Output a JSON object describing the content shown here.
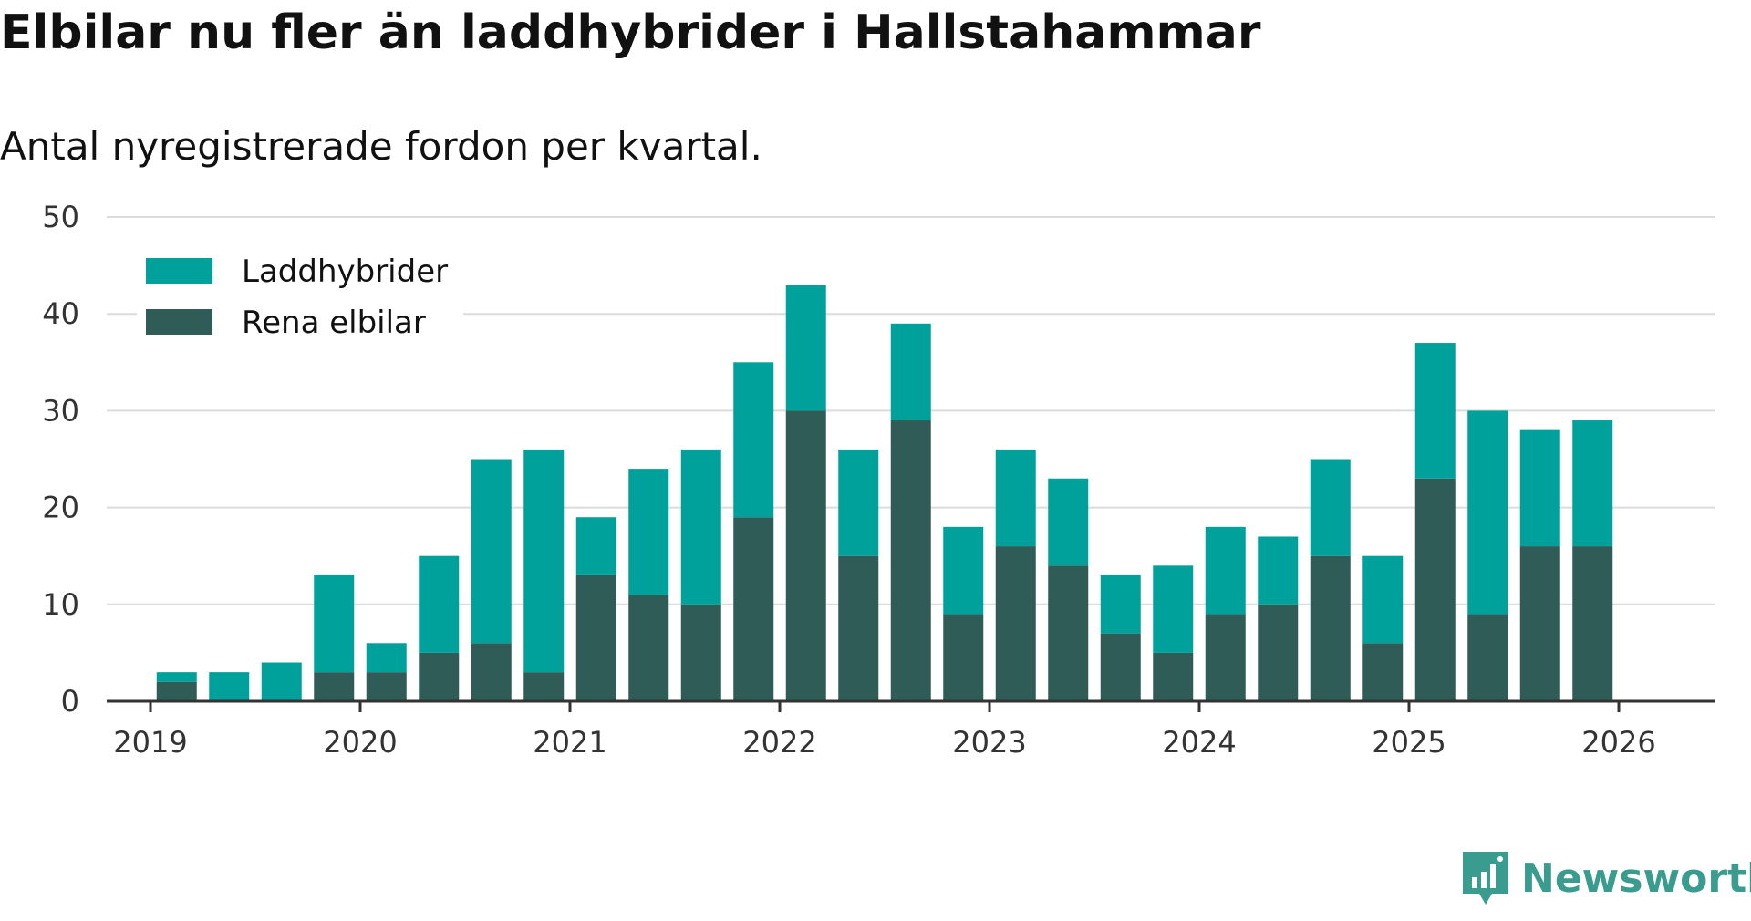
{
  "title": "Elbilar nu fler än laddhybrider i Hallstahammar",
  "subtitle": "Antal nyregistrerade fordon per kvartal.",
  "brand": {
    "name": "Newsworthy",
    "color": "#3a9c8e",
    "icon": "newsworthy-logo-icon"
  },
  "colors": {
    "plugin_hybrid": "#00a19a",
    "electric": "#305c57",
    "grid": "#dcdcdc",
    "axis": "#333333"
  },
  "chart_data": {
    "type": "bar",
    "stacked": true,
    "title": "Elbilar nu fler än laddhybrider i Hallstahammar",
    "subtitle": "Antal nyregistrerade fordon per kvartal.",
    "xlabel": "",
    "ylabel": "",
    "ylim": [
      0,
      50
    ],
    "yticks": [
      0,
      10,
      20,
      30,
      40,
      50
    ],
    "xticks": [
      "2019",
      "2020",
      "2021",
      "2022",
      "2023",
      "2024",
      "2025",
      "2026"
    ],
    "grid": true,
    "legend_position": "top-left",
    "categories": [
      "2019Q2",
      "2019Q3",
      "2019Q4",
      "2020Q1",
      "2020Q2",
      "2020Q3",
      "2020Q4",
      "2021Q1",
      "2021Q2",
      "2021Q3",
      "2021Q4",
      "2022Q1",
      "2022Q2",
      "2022Q3",
      "2022Q4",
      "2023Q1",
      "2023Q2",
      "2023Q3",
      "2023Q4",
      "2024Q1",
      "2024Q2",
      "2024Q3",
      "2024Q4",
      "2025Q1",
      "2025Q2",
      "2025Q3",
      "2025Q4",
      "2026Q1"
    ],
    "series": [
      {
        "name": "Rena elbilar",
        "values": [
          2,
          0,
          0,
          3,
          3,
          5,
          6,
          3,
          13,
          11,
          10,
          19,
          30,
          15,
          29,
          9,
          16,
          14,
          7,
          5,
          9,
          10,
          15,
          6,
          23,
          9,
          16,
          16
        ]
      },
      {
        "name": "Laddhybrider",
        "values": [
          1,
          3,
          4,
          10,
          3,
          10,
          19,
          23,
          6,
          13,
          16,
          16,
          13,
          11,
          10,
          9,
          10,
          9,
          6,
          9,
          9,
          7,
          10,
          9,
          14,
          21,
          12,
          13
        ]
      }
    ]
  }
}
